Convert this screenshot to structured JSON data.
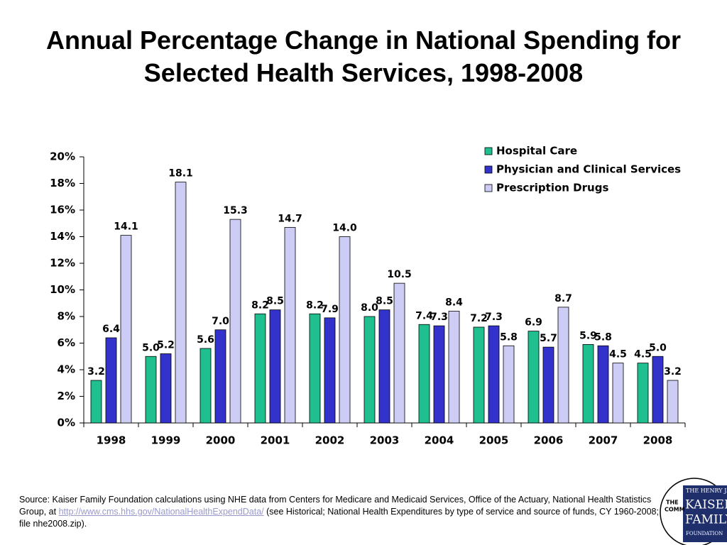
{
  "chart_data": {
    "type": "bar",
    "title": "Annual Percentage Change in National Spending for Selected Health Services, 1998-2008",
    "categories": [
      "1998",
      "1999",
      "2000",
      "2001",
      "2002",
      "2003",
      "2004",
      "2005",
      "2006",
      "2007",
      "2008"
    ],
    "series": [
      {
        "name": "Hospital Care",
        "color": "#1fbf8f",
        "values": [
          3.2,
          5.0,
          5.6,
          8.2,
          8.2,
          8.0,
          7.4,
          7.2,
          6.9,
          5.9,
          4.5
        ],
        "value_labels": [
          "3.2",
          "5.0",
          "5.6",
          "8.2",
          "8.2",
          "8.0",
          "7.4",
          "7.2",
          "6.9",
          "5.9",
          "4.5"
        ]
      },
      {
        "name": "Physician and Clinical Services",
        "color": "#3333cc",
        "values": [
          6.4,
          5.2,
          7.0,
          8.5,
          7.9,
          8.5,
          7.3,
          7.3,
          5.7,
          5.8,
          5.0
        ],
        "value_labels": [
          "6.4",
          "5.2",
          "7.0",
          "8.5",
          "7.9",
          "8.5",
          "7.3",
          "7.3",
          "5.7",
          "5.8",
          "5.0"
        ]
      },
      {
        "name": "Prescription Drugs",
        "color": "#ccccf5",
        "values": [
          14.1,
          18.1,
          15.3,
          14.7,
          14.0,
          10.5,
          8.4,
          5.8,
          8.7,
          4.5,
          3.2
        ],
        "value_labels": [
          "14.1",
          "18.1",
          "15.3",
          "14.7",
          "14.0",
          "10.5",
          "8.4",
          "5.8",
          "8.7",
          "4.5",
          "3.2"
        ]
      }
    ],
    "ylim": [
      0,
      20
    ],
    "yticks": [
      {
        "value": 0,
        "label": "0%"
      },
      {
        "value": 2,
        "label": "2%"
      },
      {
        "value": 4,
        "label": "4%"
      },
      {
        "value": 6,
        "label": "6%"
      },
      {
        "value": 8,
        "label": "8%"
      },
      {
        "value": 10,
        "label": "10%"
      },
      {
        "value": 12,
        "label": "12%"
      },
      {
        "value": 14,
        "label": "14%"
      },
      {
        "value": 16,
        "label": "16%"
      },
      {
        "value": 18,
        "label": "18%"
      },
      {
        "value": 20,
        "label": "20%"
      }
    ],
    "grid": false,
    "legend": "top-right",
    "source": {
      "before": "Source: Kaiser Family Foundation calculations using NHE data from Centers for Medicare and Medicaid Services, Office of the Actuary, National Health Statistics Group, at ",
      "link": "http://www.cms.hhs.gov/NationalHealthExpendData/",
      "after": " (see Historical; National Health Expenditures by type of service and source of funds, CY 1960-2008; file nhe2008.zip)."
    },
    "logo": [
      "THE",
      "COMM",
      "THE HENRY J.",
      "KAISER",
      "FAMILY",
      "FOUNDATION"
    ]
  }
}
